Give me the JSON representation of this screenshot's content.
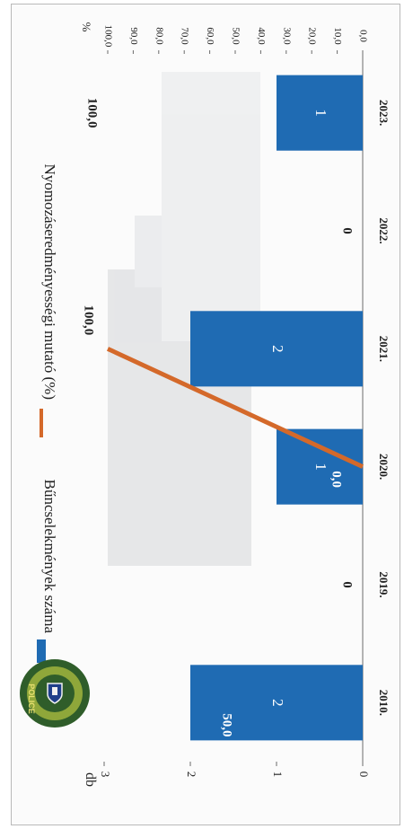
{
  "chart_data": {
    "type": "bar",
    "orientation": "rotated-90-clockwise",
    "categories": [
      "2010.",
      "2019.",
      "2020.",
      "2021.",
      "2022.",
      "2023."
    ],
    "series": [
      {
        "name": "Bűncselekmények száma",
        "type": "bar",
        "axis": "left",
        "color": "#1f6bb3",
        "values": [
          2,
          0,
          1,
          2,
          0,
          1
        ],
        "labels": [
          "2",
          "0",
          "1",
          "2",
          "0",
          "1"
        ]
      },
      {
        "name": "Nyomozáseredményességi mutató (%)",
        "type": "line",
        "axis": "right",
        "color": "#d4692a",
        "values": [
          50.0,
          null,
          0.0,
          100.0,
          null,
          100.0
        ],
        "labels": [
          "50,0",
          "",
          "0,0",
          "100,0",
          "",
          "100,0"
        ]
      }
    ],
    "left_axis": {
      "unit": "db",
      "min": 0,
      "max": 3,
      "ticks": [
        "0",
        "1",
        "2",
        "3"
      ]
    },
    "right_axis": {
      "unit": "%",
      "min": 0,
      "max": 100,
      "ticks": [
        "0,0",
        "10,0",
        "20,0",
        "30,0",
        "40,0",
        "50,0",
        "60,0",
        "70,0",
        "80,0",
        "90,0",
        "100,0"
      ]
    },
    "legend_position": "top",
    "grid": false
  },
  "logo": {
    "text_top": "POLICE",
    "text_ring": "RENDŐRKAPITÁNYSÁG",
    "colors": {
      "outer": "#2f5d2a",
      "inner": "#8fa73a",
      "text": "#e8e070",
      "shield": "#1f3f8a"
    }
  }
}
